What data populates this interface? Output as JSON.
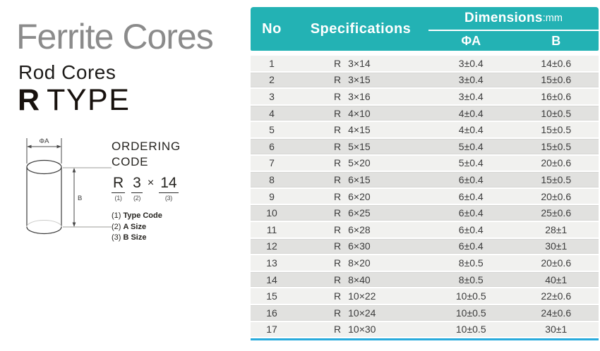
{
  "header": {
    "title": "Ferrite Cores",
    "subtitle": "Rod Cores",
    "type_letter": "R",
    "type_word": "TYPE"
  },
  "diagram": {
    "a_label": "ΦA",
    "b_label": "B"
  },
  "ordering": {
    "heading_line1": "ORDERING",
    "heading_line2": "CODE",
    "formula": {
      "type": "R",
      "type_ref": "(1)",
      "a_value": "3",
      "a_ref": "(2)",
      "times": "×",
      "b_value": "14",
      "b_ref": "(3)"
    },
    "legend": [
      {
        "ref": "(1)",
        "label": "Type Code"
      },
      {
        "ref": "(2)",
        "label": "A Size"
      },
      {
        "ref": "(3)",
        "label": "B Size"
      }
    ]
  },
  "table": {
    "col_no": "No",
    "col_spec": "Specifications",
    "dims_title": "Dimensions",
    "dims_unit": ":mm",
    "col_a": "ΦA",
    "col_b": "B",
    "rows": [
      {
        "no": "1",
        "type": "R",
        "size": "3×14",
        "a": "3±0.4",
        "b": "14±0.6"
      },
      {
        "no": "2",
        "type": "R",
        "size": "3×15",
        "a": "3±0.4",
        "b": "15±0.6"
      },
      {
        "no": "3",
        "type": "R",
        "size": "3×16",
        "a": "3±0.4",
        "b": "16±0.6"
      },
      {
        "no": "4",
        "type": "R",
        "size": "4×10",
        "a": "4±0.4",
        "b": "10±0.5"
      },
      {
        "no": "5",
        "type": "R",
        "size": "4×15",
        "a": "4±0.4",
        "b": "15±0.5"
      },
      {
        "no": "6",
        "type": "R",
        "size": "5×15",
        "a": "5±0.4",
        "b": "15±0.5"
      },
      {
        "no": "7",
        "type": "R",
        "size": "5×20",
        "a": "5±0.4",
        "b": "20±0.6"
      },
      {
        "no": "8",
        "type": "R",
        "size": "6×15",
        "a": "6±0.4",
        "b": "15±0.5"
      },
      {
        "no": "9",
        "type": "R",
        "size": "6×20",
        "a": "6±0.4",
        "b": "20±0.6"
      },
      {
        "no": "10",
        "type": "R",
        "size": "6×25",
        "a": "6±0.4",
        "b": "25±0.6"
      },
      {
        "no": "11",
        "type": "R",
        "size": "6×28",
        "a": "6±0.4",
        "b": "28±1"
      },
      {
        "no": "12",
        "type": "R",
        "size": "6×30",
        "a": "6±0.4",
        "b": "30±1"
      },
      {
        "no": "13",
        "type": "R",
        "size": "8×20",
        "a": "8±0.5",
        "b": "20±0.6"
      },
      {
        "no": "14",
        "type": "R",
        "size": "8×40",
        "a": "8±0.5",
        "b": "40±1"
      },
      {
        "no": "15",
        "type": "R",
        "size": "10×22",
        "a": "10±0.5",
        "b": "22±0.6"
      },
      {
        "no": "16",
        "type": "R",
        "size": "10×24",
        "a": "10±0.5",
        "b": "24±0.6"
      },
      {
        "no": "17",
        "type": "R",
        "size": "10×30",
        "a": "10±0.5",
        "b": "30±1"
      }
    ]
  },
  "colors": {
    "header_teal": "#23b2b4",
    "bottom_line_blue": "#29abdc",
    "row_light": "#f1f1ef",
    "row_dark": "#e1e1df",
    "title_gray": "#8b8b8b",
    "text_dark": "#3c3c3c"
  }
}
